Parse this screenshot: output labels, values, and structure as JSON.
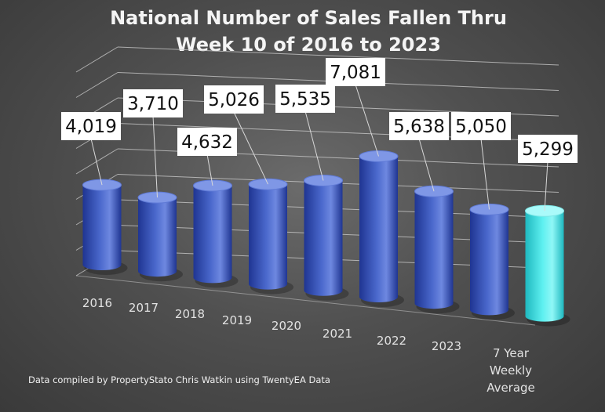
{
  "chart_data": {
    "type": "bar",
    "title": "National Number of Sales Fallen Thru Week 10 of 2016 to 2023",
    "title_lines": [
      "National Number of Sales Fallen Thru",
      "Week 10 of 2016 to 2023"
    ],
    "categories": [
      "2016",
      "2017",
      "2018",
      "2019",
      "2020",
      "2021",
      "2022",
      "2023",
      "7 Year Weekly Average"
    ],
    "category_lines": [
      [
        "2016"
      ],
      [
        "2017"
      ],
      [
        "2018"
      ],
      [
        "2019"
      ],
      [
        "2020"
      ],
      [
        "2021"
      ],
      [
        "2022"
      ],
      [
        "2023"
      ],
      [
        "7 Year",
        "Weekly",
        "Average"
      ]
    ],
    "values": [
      4019,
      3710,
      4632,
      5026,
      5535,
      7081,
      5638,
      5050,
      5299
    ],
    "value_labels": [
      "4,019",
      "3,710",
      "4,632",
      "5,026",
      "5,535",
      "7,081",
      "5,638",
      "5,050",
      "5,299"
    ],
    "xlabel": "",
    "ylabel": "",
    "ylim": [
      0,
      8000
    ],
    "grid": true,
    "legend": "none",
    "style": "3d-cylinder",
    "colors": {
      "bar": "#4a68cc",
      "bar_dark": "#1f3592",
      "bar_top": "#7f97e6",
      "highlight": "#5ef0f0",
      "highlight_dark": "#1fb8bf",
      "highlight_top": "#aafafa",
      "label_box": "#ffffff",
      "label_text": "#111111",
      "title": "#f4f4f4",
      "axis_text": "#e2e2e2"
    }
  },
  "footnote": "Data compiled by PropertyStato Chris Watkin using TwentyEA Data"
}
